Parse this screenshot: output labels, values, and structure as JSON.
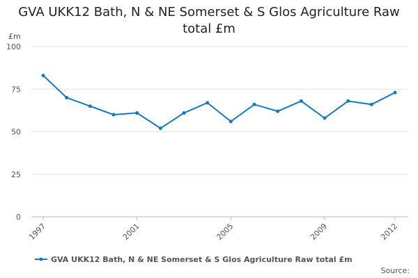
{
  "chart_data": {
    "type": "line",
    "title": "GVA UKK12 Bath, N & NE Somerset & S Glos Agriculture Raw total £m",
    "y_label": "£m",
    "x": [
      1997,
      1998,
      1999,
      2000,
      2001,
      2002,
      2003,
      2004,
      2005,
      2006,
      2007,
      2008,
      2009,
      2010,
      2011,
      2012
    ],
    "series": [
      {
        "name": "GVA UKK12 Bath, N & NE Somerset & S Glos Agriculture Raw total £m",
        "color": "#0f7bc0",
        "values": [
          83,
          70,
          65,
          60,
          61,
          52,
          61,
          67,
          56,
          66,
          62,
          68,
          58,
          68,
          66,
          73
        ]
      }
    ],
    "xlim": [
      1997,
      2012
    ],
    "xticks": [
      1997,
      2001,
      2005,
      2009,
      2012
    ],
    "ylim": [
      0,
      100
    ],
    "yticks": [
      0,
      25,
      50,
      75,
      100
    ],
    "grid": true,
    "legend": "bottom",
    "source": "Source:"
  }
}
